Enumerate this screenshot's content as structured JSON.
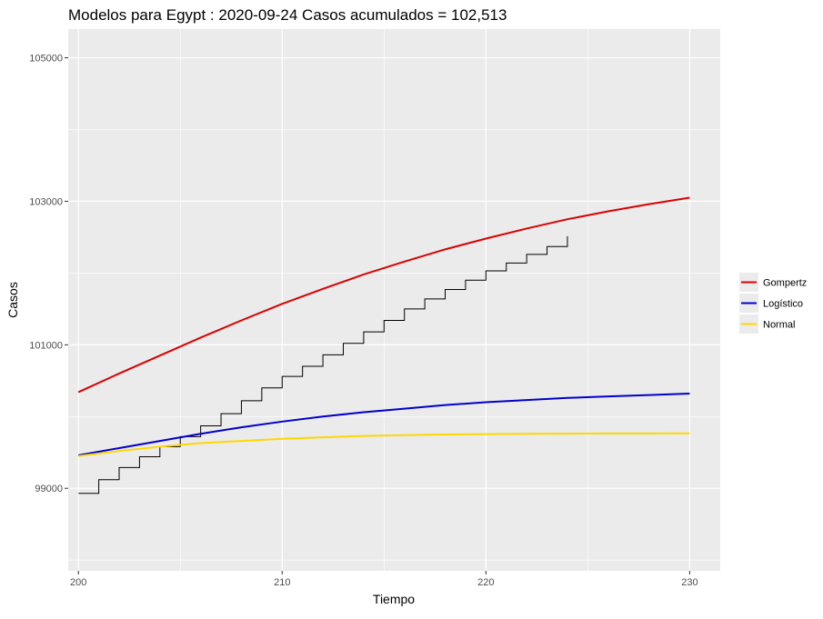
{
  "chart_data": {
    "type": "line",
    "title": "Modelos para Egypt : 2020-09-24 Casos acumulados =  102,513",
    "xlabel": "Tiempo",
    "ylabel": "Casos",
    "xlim": [
      199.5,
      231.5
    ],
    "ylim": [
      97850,
      105400
    ],
    "x_ticks": [
      200,
      210,
      220,
      230
    ],
    "x_tick_labels": [
      "200",
      "210",
      "220",
      "230"
    ],
    "y_ticks": [
      99000,
      101000,
      103000,
      105000
    ],
    "y_tick_labels": [
      "99000",
      "101000",
      "103000",
      "105000"
    ],
    "grid": true,
    "legend_position": "right",
    "observed": {
      "style": "step",
      "color": "#000000",
      "x": [
        200,
        201,
        202,
        203,
        204,
        205,
        206,
        207,
        208,
        209,
        210,
        211,
        212,
        213,
        214,
        215,
        216,
        217,
        218,
        219,
        220,
        221,
        222,
        223,
        224
      ],
      "y": [
        98930,
        99120,
        99290,
        99440,
        99580,
        99720,
        99870,
        100040,
        100220,
        100400,
        100560,
        100700,
        100860,
        101020,
        101180,
        101340,
        101500,
        101640,
        101770,
        101900,
        102030,
        102140,
        102260,
        102370,
        102513
      ]
    },
    "series": [
      {
        "name": "Gompertz",
        "color": "#dd0000",
        "x": [
          200,
          202,
          204,
          206,
          208,
          210,
          212,
          214,
          216,
          218,
          220,
          222,
          224,
          226,
          228,
          230
        ],
        "y": [
          100340,
          100600,
          100850,
          101100,
          101340,
          101570,
          101780,
          101980,
          102160,
          102330,
          102480,
          102620,
          102750,
          102860,
          102960,
          103050
        ]
      },
      {
        "name": "Logístico",
        "color": "#0000cc",
        "x": [
          200,
          202,
          204,
          206,
          208,
          210,
          212,
          214,
          216,
          218,
          220,
          222,
          224,
          226,
          228,
          230
        ],
        "y": [
          99460,
          99560,
          99660,
          99760,
          99850,
          99930,
          100000,
          100060,
          100110,
          100160,
          100200,
          100230,
          100260,
          100280,
          100300,
          100320
        ]
      },
      {
        "name": "Normal",
        "color": "#ffd700",
        "x": [
          200,
          202,
          204,
          206,
          208,
          210,
          212,
          214,
          216,
          218,
          220,
          222,
          224,
          226,
          228,
          230
        ],
        "y": [
          99450,
          99520,
          99580,
          99630,
          99660,
          99690,
          99710,
          99730,
          99740,
          99750,
          99755,
          99760,
          99762,
          99764,
          99765,
          99766
        ]
      }
    ]
  }
}
